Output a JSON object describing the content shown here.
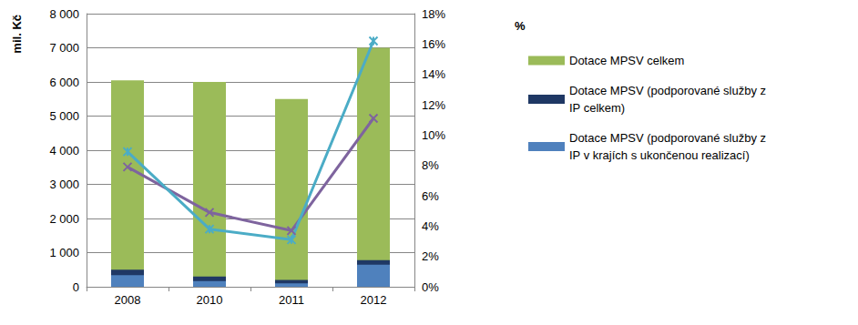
{
  "chart_data": {
    "type": "bar",
    "y_label": "mil. Kč",
    "y2_label": "%",
    "categories": [
      "2008",
      "2010",
      "2011",
      "2012"
    ],
    "ylim": [
      0,
      8000
    ],
    "yticks": [
      0,
      {
        "value": 1000,
        "label": "1 000"
      },
      {
        "value": 2000,
        "label": "2 000"
      },
      {
        "value": 3000,
        "label": "3 000"
      },
      {
        "value": 4000,
        "label": "4 000"
      },
      {
        "value": 5000,
        "label": "5 000"
      },
      {
        "value": 6000,
        "label": "6 000"
      },
      {
        "value": 7000,
        "label": "7 000"
      },
      {
        "value": 8000,
        "label": "8 000"
      }
    ],
    "y2lim": [
      0,
      18
    ],
    "y2ticks": [
      {
        "value": 0,
        "label": "0%"
      },
      {
        "value": 2,
        "label": "2%"
      },
      {
        "value": 4,
        "label": "4%"
      },
      {
        "value": 6,
        "label": "6%"
      },
      {
        "value": 8,
        "label": "8%"
      },
      {
        "value": 10,
        "label": "10%"
      },
      {
        "value": 12,
        "label": "12%"
      },
      {
        "value": 14,
        "label": "14%"
      },
      {
        "value": 16,
        "label": "16%"
      },
      {
        "value": 18,
        "label": "18%"
      }
    ],
    "grid": true,
    "legend": "right",
    "stacked": false,
    "series": [
      {
        "name": "Dotace MPSV celkem",
        "type": "bar",
        "color": "#9bbb59",
        "values": [
          6050,
          6000,
          5500,
          7000
        ]
      },
      {
        "name": "Dotace MPSV (podporované služby z IP celkem)",
        "type": "bar",
        "color": "#1f3864",
        "values": [
          500,
          300,
          200,
          780
        ]
      },
      {
        "name": "Dotace MPSV (podporované služby z IP v krajích s ukončenou realizací)",
        "type": "bar",
        "color": "#4f81bd",
        "values": [
          340,
          170,
          100,
          650
        ]
      },
      {
        "name": "Dotace MPSV (podporované služby z IP celkem)",
        "type": "line",
        "axis": "y2",
        "color": "#7e649e",
        "marker": "x",
        "values": [
          7.9,
          4.9,
          3.7,
          11.1
        ]
      },
      {
        "name": "Dotace MPSV (podporované služby z IP v krajích s ukončenou realizací)",
        "type": "line",
        "axis": "y2",
        "color": "#4bacc6",
        "marker": "star",
        "values": [
          8.9,
          3.8,
          3.1,
          16.2
        ]
      }
    ]
  }
}
